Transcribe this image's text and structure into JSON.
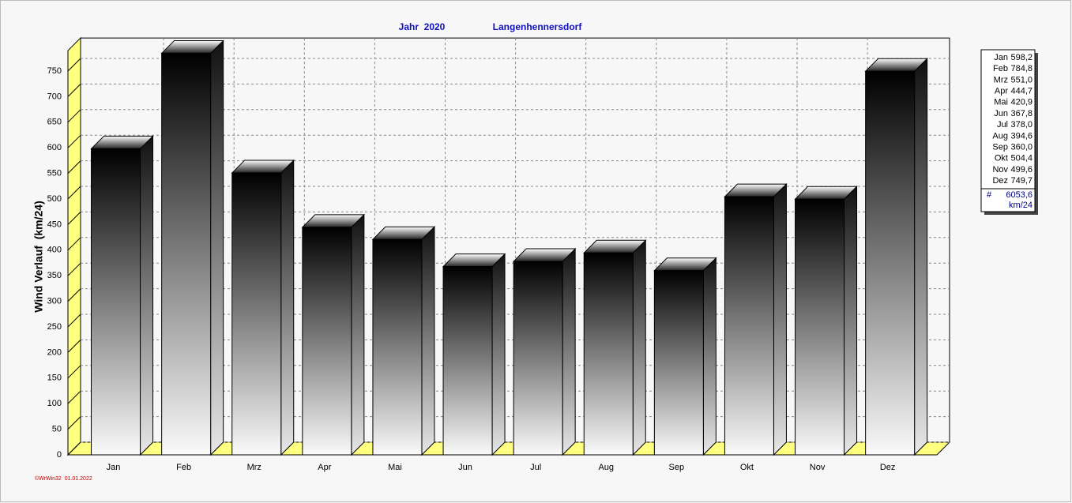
{
  "chart_data": {
    "type": "bar",
    "title": "Jahr  2020",
    "subtitle": "Langenhennersdorf",
    "y_label": "Wind Verlauf  (km/24)",
    "footer": "©WrWin32  01.01.2022",
    "categories": [
      "Jan",
      "Feb",
      "Mrz",
      "Apr",
      "Mai",
      "Jun",
      "Jul",
      "Aug",
      "Sep",
      "Okt",
      "Nov",
      "Dez"
    ],
    "values": [
      598.2,
      784.8,
      551.0,
      444.7,
      420.9,
      367.8,
      378.0,
      394.6,
      360.0,
      504.4,
      499.6,
      749.7
    ],
    "value_labels": [
      "598,2",
      "784,8",
      "551,0",
      "444,7",
      "420,9",
      "367,8",
      "378,0",
      "394,6",
      "360,0",
      "504,4",
      "499,6",
      "749,7"
    ],
    "total_marker": "#",
    "total": {
      "value": 6053.6,
      "label": "6053,6"
    },
    "total_unit": "km/24",
    "ylim": [
      0,
      790
    ],
    "yticks": [
      0,
      50,
      100,
      150,
      200,
      250,
      300,
      350,
      400,
      450,
      500,
      550,
      600,
      650,
      700,
      750
    ],
    "grid": true,
    "wall_color": "#ffff80"
  }
}
